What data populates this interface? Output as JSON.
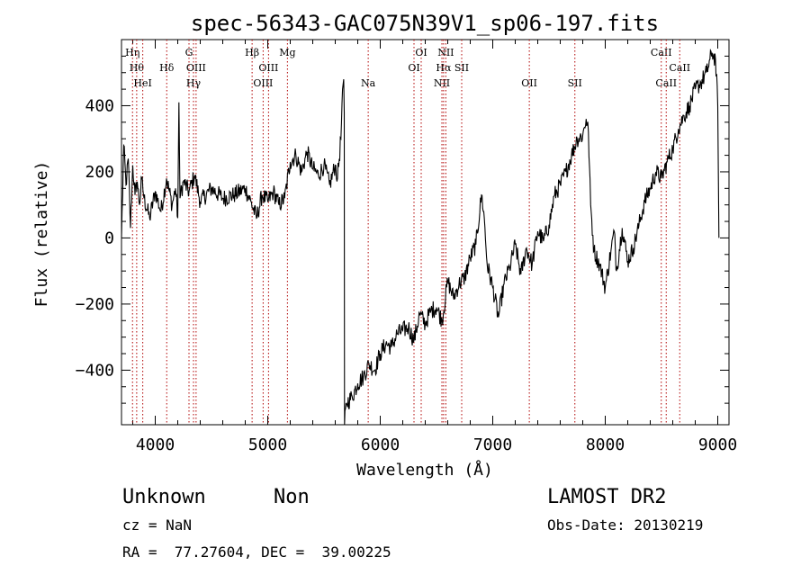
{
  "chart_data": {
    "type": "line",
    "title": "spec-56343-GAC075N39V1_sp06-197.fits",
    "xlabel": "Wavelength (Å)",
    "ylabel": "Flux (relative)",
    "xlim": [
      3700,
      9100
    ],
    "ylim": [
      -565,
      600
    ],
    "x_ticks": [
      4000,
      5000,
      6000,
      7000,
      8000,
      9000
    ],
    "x_tick_labels": [
      "4000",
      "5000",
      "6000",
      "7000",
      "8000",
      "9000"
    ],
    "y_ticks": [
      -400,
      -200,
      0,
      200,
      400
    ],
    "y_tick_labels": [
      "−400",
      "−200",
      "0",
      "200",
      "400"
    ],
    "grid": false,
    "series": [
      {
        "color": "#000000",
        "x": [
          3700,
          3720,
          3740,
          3760,
          3780,
          3800,
          3820,
          3840,
          3860,
          3880,
          3900,
          3950,
          4000,
          4050,
          4100,
          4150,
          4180,
          4200,
          4210,
          4220,
          4250,
          4300,
          4350,
          4400,
          4500,
          4600,
          4700,
          4800,
          4850,
          4900,
          4950,
          5000,
          5050,
          5100,
          5150,
          5200,
          5250,
          5300,
          5350,
          5400,
          5450,
          5500,
          5550,
          5600,
          5620,
          5650,
          5665,
          5675,
          5680,
          5682,
          5700,
          5750,
          5800,
          5850,
          5900,
          5950,
          6000,
          6050,
          6100,
          6150,
          6200,
          6250,
          6300,
          6350,
          6400,
          6450,
          6500,
          6550,
          6600,
          6650,
          6700,
          6750,
          6800,
          6850,
          6900,
          6920,
          6950,
          7000,
          7050,
          7100,
          7150,
          7200,
          7250,
          7300,
          7350,
          7400,
          7450,
          7500,
          7550,
          7600,
          7650,
          7700,
          7750,
          7800,
          7830,
          7850,
          7870,
          7900,
          7950,
          8000,
          8050,
          8080,
          8100,
          8150,
          8200,
          8250,
          8300,
          8350,
          8400,
          8450,
          8500,
          8550,
          8600,
          8650,
          8700,
          8750,
          8800,
          8850,
          8900,
          8950,
          8980,
          9000,
          9010
        ],
        "y": [
          0,
          280,
          160,
          240,
          30,
          220,
          130,
          170,
          100,
          180,
          120,
          60,
          140,
          80,
          180,
          100,
          150,
          60,
          410,
          120,
          170,
          140,
          190,
          110,
          150,
          120,
          130,
          150,
          110,
          60,
          130,
          110,
          140,
          100,
          120,
          230,
          250,
          200,
          260,
          210,
          190,
          220,
          160,
          220,
          180,
          300,
          450,
          480,
          380,
          -565,
          -500,
          -480,
          -440,
          -420,
          -380,
          -400,
          -350,
          -320,
          -330,
          -290,
          -280,
          -270,
          -310,
          -230,
          -260,
          -220,
          -210,
          -250,
          -130,
          -180,
          -140,
          -120,
          -60,
          -20,
          130,
          80,
          -80,
          -150,
          -240,
          -140,
          -90,
          -20,
          -110,
          -30,
          -80,
          20,
          -10,
          40,
          130,
          160,
          200,
          250,
          300,
          310,
          360,
          320,
          100,
          -40,
          -80,
          -150,
          -40,
          20,
          -100,
          30,
          -70,
          -30,
          40,
          110,
          150,
          200,
          180,
          230,
          270,
          330,
          370,
          400,
          450,
          470,
          500,
          560,
          540,
          400,
          0
        ]
      }
    ],
    "line_markers": [
      {
        "x": 3798,
        "label": "Hη",
        "row": 0
      },
      {
        "x": 3835,
        "label": "Hθ",
        "row": 1
      },
      {
        "x": 3889,
        "label": "HeI",
        "row": 2
      },
      {
        "x": 4102,
        "label": "Hδ",
        "row": 1
      },
      {
        "x": 4300,
        "label": "G",
        "row": 0
      },
      {
        "x": 4340,
        "label": "Hγ",
        "row": 2
      },
      {
        "x": 4363,
        "label": "OIII",
        "row": 1
      },
      {
        "x": 4861,
        "label": "Hβ",
        "row": 0
      },
      {
        "x": 4959,
        "label": "OIII",
        "row": 2
      },
      {
        "x": 5007,
        "label": "OIII",
        "row": 1
      },
      {
        "x": 5175,
        "label": "Mg",
        "row": 0
      },
      {
        "x": 5893,
        "label": "Na",
        "row": 2
      },
      {
        "x": 6300,
        "label": "OI",
        "row": 1
      },
      {
        "x": 6364,
        "label": "OI",
        "row": 0
      },
      {
        "x": 6548,
        "label": "NII",
        "row": 2
      },
      {
        "x": 6563,
        "label": "Hα",
        "row": 1
      },
      {
        "x": 6583,
        "label": "NII",
        "row": 0
      },
      {
        "x": 6724,
        "label": "SII",
        "row": 1
      },
      {
        "x": 7325,
        "label": "OII",
        "row": 2
      },
      {
        "x": 7730,
        "label": "SII",
        "row": 2
      },
      {
        "x": 8498,
        "label": "CaII",
        "row": 0
      },
      {
        "x": 8542,
        "label": "CaII",
        "row": 2
      },
      {
        "x": 8662,
        "label": "CaII",
        "row": 1
      }
    ]
  },
  "info": {
    "object_class": "Unknown",
    "subclass": "Non",
    "survey": "LAMOST DR2",
    "redshift": "cz = NaN",
    "obs_date": "Obs-Date: 20130219",
    "coords": "RA =  77.27604, DEC =  39.00225"
  }
}
